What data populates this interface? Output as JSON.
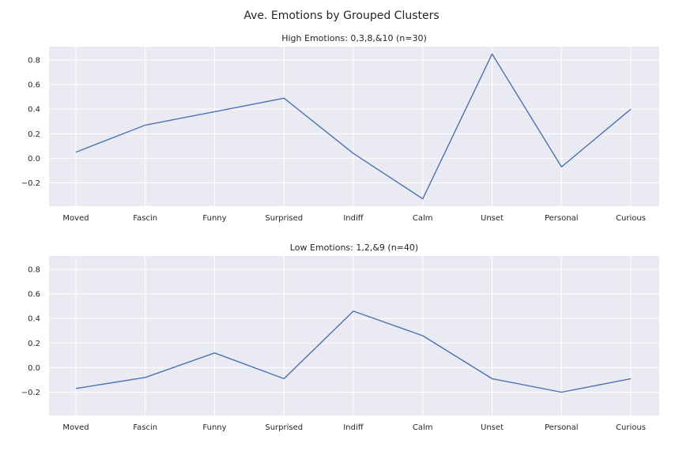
{
  "figure_title": "Ave. Emotions by Grouped Clusters",
  "colors": {
    "background": "#eaeaf2",
    "grid": "#ffffff",
    "line": "#4c72b0"
  },
  "chart_data": [
    {
      "type": "line",
      "title": "High Emotions: 0,3,8,&10 (n=30)",
      "categories": [
        "Moved",
        "Fascin",
        "Funny",
        "Surprised",
        "Indiff",
        "Calm",
        "Unset",
        "Personal",
        "Curious"
      ],
      "series": [
        {
          "values": [
            0.05,
            0.27,
            0.38,
            0.49,
            0.04,
            -0.33,
            0.85,
            -0.07,
            0.4
          ]
        }
      ],
      "ylim": [
        -0.39,
        0.91
      ],
      "yticks": [
        -0.2,
        0.0,
        0.2,
        0.4,
        0.6,
        0.8
      ],
      "ytick_labels": [
        "−0.2",
        "0.0",
        "0.2",
        "0.4",
        "0.6",
        "0.8"
      ],
      "grid": true
    },
    {
      "type": "line",
      "title": "Low Emotions: 1,2,&9 (n=40)",
      "categories": [
        "Moved",
        "Fascin",
        "Funny",
        "Surprised",
        "Indiff",
        "Calm",
        "Unset",
        "Personal",
        "Curious"
      ],
      "series": [
        {
          "values": [
            -0.17,
            -0.08,
            0.12,
            -0.09,
            0.46,
            0.26,
            -0.09,
            -0.2,
            -0.09
          ]
        }
      ],
      "ylim": [
        -0.39,
        0.91
      ],
      "yticks": [
        -0.2,
        0.0,
        0.2,
        0.4,
        0.6,
        0.8
      ],
      "ytick_labels": [
        "−0.2",
        "0.0",
        "0.2",
        "0.4",
        "0.6",
        "0.8"
      ],
      "grid": true
    }
  ]
}
